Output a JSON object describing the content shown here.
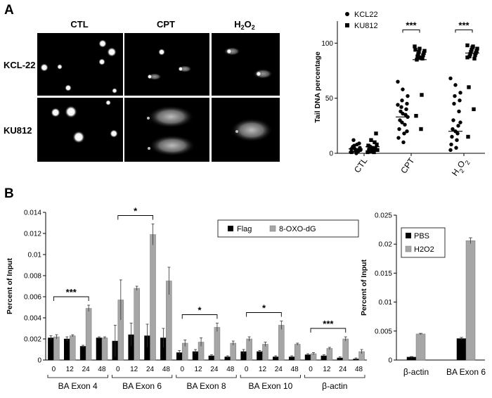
{
  "panel_a": {
    "letter": "A",
    "columns": [
      "CTL",
      "CPT",
      "H2O2"
    ],
    "rows": [
      "KCL-22",
      "KU812"
    ]
  },
  "panel_b": {
    "letter": "B"
  },
  "chart_data": [
    {
      "id": "scatter",
      "type": "scatter",
      "title": "",
      "ylabel": "Tail DNA percentage",
      "ylim": [
        0,
        120
      ],
      "yticks": [
        0,
        50,
        100
      ],
      "categories": [
        "CTL",
        "CPT",
        "H2O2"
      ],
      "legend": [
        "KCL22",
        "KU812"
      ],
      "significance": [
        "***",
        "***"
      ],
      "series": [
        {
          "name": "KCL22",
          "marker": "circle",
          "values": [
            [
              1,
              2,
              3,
              4,
              5,
              7,
              9,
              12,
              2,
              6,
              3,
              1,
              8,
              4,
              0
            ],
            [
              65,
              58,
              52,
              48,
              45,
              42,
              40,
              38,
              35,
              30,
              26,
              22,
              18,
              14,
              10,
              44,
              36,
              33,
              28,
              20
            ],
            [
              68,
              62,
              55,
              52,
              48,
              45,
              38,
              30,
              25,
              22,
              18,
              15,
              12,
              8,
              5,
              3,
              20,
              28
            ]
          ]
        },
        {
          "name": "KU812",
          "marker": "square",
          "values": [
            [
              1,
              2,
              3,
              5,
              8,
              12,
              18,
              2,
              4,
              6,
              10,
              3,
              1,
              7
            ],
            [
              97,
              95,
              93,
              92,
              91,
              90,
              89,
              88,
              86,
              85,
              53,
              34,
              22,
              94,
              87
            ],
            [
              98,
              96,
              95,
              94,
              93,
              92,
              91,
              90,
              89,
              88,
              86,
              60,
              40,
              15,
              97,
              87
            ]
          ]
        }
      ],
      "means": [
        [
          4,
          6
        ],
        [
          33,
          85
        ],
        [
          20,
          91
        ]
      ]
    },
    {
      "id": "bar-main",
      "type": "bar",
      "ylabel": "Percent of Input",
      "ylim": [
        0,
        0.014
      ],
      "yticks": [
        "0",
        "0.002",
        "0.004",
        "0.006",
        "0.008",
        "0.01",
        "0.012",
        "0.014"
      ],
      "groups": [
        "BA Exon 4",
        "BA Exon 6",
        "BA Exon 8",
        "BA Exon 10",
        "β-actin"
      ],
      "timepoints": [
        "0",
        "12",
        "24",
        "48"
      ],
      "series": [
        {
          "name": "Flag",
          "color": "#000000",
          "values": [
            [
              0.0021,
              0.002,
              0.0013,
              0.0021
            ],
            [
              0.0018,
              0.0024,
              0.0023,
              0.0021
            ],
            [
              0.0007,
              0.0008,
              0.0004,
              0.0003
            ],
            [
              0.0008,
              0.0008,
              0.0003,
              0.0003
            ],
            [
              0.0005,
              0.0004,
              0.0002,
              0.0001
            ]
          ],
          "errors": [
            [
              0.0002,
              0.0002,
              0.0001,
              0.0001
            ],
            [
              0.0015,
              0.0011,
              0.0011,
              0.0009
            ],
            [
              0.0002,
              0.0002,
              0.0001,
              0.0001
            ],
            [
              0.0002,
              0.0001,
              0.0001,
              0.0001
            ],
            [
              0.0001,
              0.0001,
              0.0001,
              0.0001
            ]
          ]
        },
        {
          "name": "8-OXO-dG",
          "color": "#a6a6a6",
          "values": [
            [
              0.0022,
              0.0023,
              0.0049,
              0.0021
            ],
            [
              0.0057,
              0.0068,
              0.0119,
              0.0075
            ],
            [
              0.0016,
              0.0017,
              0.0031,
              0.0016
            ],
            [
              0.002,
              0.0015,
              0.0033,
              0.0015
            ],
            [
              0.0006,
              0.0011,
              0.002,
              0.0008
            ]
          ],
          "errors": [
            [
              0.0002,
              0.0001,
              0.0003,
              0.0001
            ],
            [
              0.0019,
              0.0002,
              0.001,
              0.0013
            ],
            [
              0.0003,
              0.0004,
              0.0004,
              0.0002
            ],
            [
              0.0002,
              0.0002,
              0.0004,
              0.0001
            ],
            [
              0.0001,
              0.0001,
              0.0002,
              0.0002
            ]
          ]
        }
      ],
      "significance": [
        {
          "group": 0,
          "label": "***"
        },
        {
          "group": 1,
          "label": "*"
        },
        {
          "group": 2,
          "label": "*"
        },
        {
          "group": 3,
          "label": "*"
        },
        {
          "group": 4,
          "label": "***"
        }
      ],
      "legend": [
        "Flag",
        "8-OXO-dG"
      ]
    },
    {
      "id": "bar-small",
      "type": "bar",
      "ylabel": "Percent of Input",
      "ylim": [
        0,
        0.025
      ],
      "yticks": [
        "0",
        "0.005",
        "0.01",
        "0.015",
        "0.02",
        "0.025"
      ],
      "categories": [
        "β-actin",
        "BA Exon 6"
      ],
      "series": [
        {
          "name": "PBS",
          "color": "#000000",
          "values": [
            0.0005,
            0.0037
          ],
          "errors": [
            0.0001,
            0.0002
          ]
        },
        {
          "name": "H2O2",
          "color": "#a6a6a6",
          "values": [
            0.0045,
            0.0206
          ],
          "errors": [
            0.0001,
            0.0005
          ]
        }
      ],
      "legend": [
        "PBS",
        "H2O2"
      ]
    }
  ]
}
